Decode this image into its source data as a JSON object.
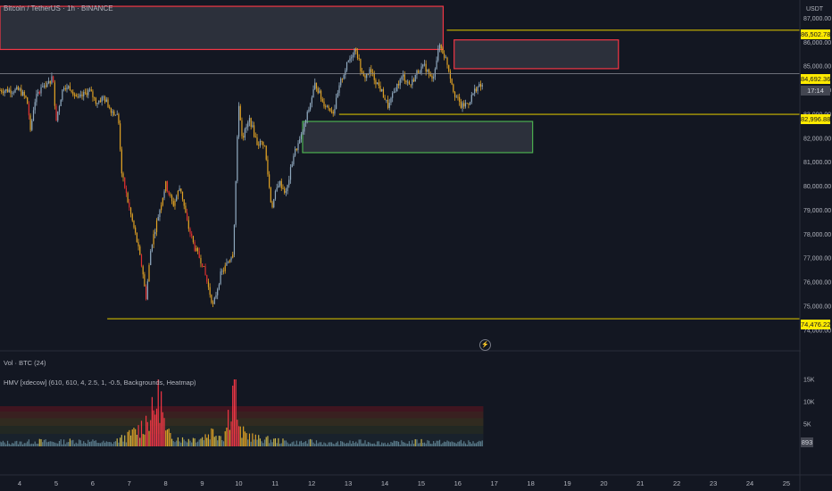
{
  "header": {
    "symbol_title": "Bitcoin / TetherUS · 1h · BINANCE",
    "currency": "USDT"
  },
  "indicators": {
    "volume_label": "Vol · BTC (24)",
    "hmv_label": "HMV [xdecow] (610, 610, 4, 2.5, 1, -0.5, Backgrounds, Heatmap)",
    "volume_axis_ticks": [
      "15K",
      "10K",
      "5K"
    ],
    "volume_last_value": "893"
  },
  "chart_data": {
    "type": "candlestick",
    "price_axis_ticks": [
      "87,000.00",
      "86,000.00",
      "85,000.00",
      "84,000.00",
      "83,000.00",
      "82,000.00",
      "81,000.00",
      "80,000.00",
      "79,000.00",
      "78,000.00",
      "77,000.00",
      "76,000.00",
      "75,000.00",
      "74,000.00"
    ],
    "price_tick_values": [
      87000,
      86000,
      85000,
      84000,
      83000,
      82000,
      81000,
      80000,
      79000,
      78000,
      77000,
      76000,
      75000,
      74000
    ],
    "ylim": [
      73900,
      87500
    ],
    "date_axis_ticks": [
      "4",
      "5",
      "6",
      "7",
      "8",
      "9",
      "10",
      "11",
      "12",
      "13",
      "14",
      "15",
      "16",
      "17",
      "18",
      "19",
      "20",
      "21",
      "22",
      "23",
      "24",
      "25"
    ],
    "price_path": [
      [
        4.0,
        84000
      ],
      [
        4.2,
        83600
      ],
      [
        4.3,
        82300
      ],
      [
        4.4,
        83500
      ],
      [
        4.6,
        84200
      ],
      [
        4.8,
        84300
      ],
      [
        4.9,
        84600
      ],
      [
        5.0,
        82800
      ],
      [
        5.2,
        84200
      ],
      [
        5.4,
        84100
      ],
      [
        5.6,
        83600
      ],
      [
        5.9,
        84000
      ],
      [
        6.1,
        83500
      ],
      [
        6.3,
        83700
      ],
      [
        6.5,
        83200
      ],
      [
        6.7,
        82900
      ],
      [
        6.8,
        80500
      ],
      [
        7.0,
        79100
      ],
      [
        7.2,
        77800
      ],
      [
        7.4,
        76200
      ],
      [
        7.45,
        75200
      ],
      [
        7.6,
        77500
      ],
      [
        7.8,
        78800
      ],
      [
        8.0,
        80100
      ],
      [
        8.2,
        79200
      ],
      [
        8.4,
        80000
      ],
      [
        8.6,
        78400
      ],
      [
        8.8,
        77400
      ],
      [
        9.0,
        76800
      ],
      [
        9.2,
        75600
      ],
      [
        9.3,
        75000
      ],
      [
        9.5,
        76300
      ],
      [
        9.7,
        76800
      ],
      [
        9.85,
        77300
      ],
      [
        10.0,
        83500
      ],
      [
        10.1,
        82000
      ],
      [
        10.3,
        82800
      ],
      [
        10.5,
        81800
      ],
      [
        10.7,
        81800
      ],
      [
        10.9,
        79100
      ],
      [
        11.1,
        80200
      ],
      [
        11.3,
        79700
      ],
      [
        11.5,
        81300
      ],
      [
        11.7,
        82000
      ],
      [
        11.9,
        83100
      ],
      [
        12.1,
        84300
      ],
      [
        12.3,
        83500
      ],
      [
        12.6,
        83100
      ],
      [
        12.8,
        84400
      ],
      [
        13.0,
        85200
      ],
      [
        13.2,
        85800
      ],
      [
        13.4,
        84500
      ],
      [
        13.6,
        84800
      ],
      [
        13.9,
        84000
      ],
      [
        14.1,
        83300
      ],
      [
        14.3,
        84100
      ],
      [
        14.5,
        84600
      ],
      [
        14.7,
        84200
      ],
      [
        14.9,
        84800
      ],
      [
        15.1,
        85000
      ],
      [
        15.3,
        84400
      ],
      [
        15.5,
        85900
      ],
      [
        15.7,
        85200
      ],
      [
        15.9,
        83900
      ],
      [
        16.1,
        83300
      ],
      [
        16.3,
        83500
      ],
      [
        16.5,
        84100
      ],
      [
        16.7,
        84200
      ]
    ],
    "volume_path": [
      [
        4.0,
        900
      ],
      [
        4.5,
        1200
      ],
      [
        5.0,
        1000
      ],
      [
        5.5,
        1300
      ],
      [
        6.0,
        1100
      ],
      [
        6.5,
        800
      ],
      [
        7.0,
        2500
      ],
      [
        7.3,
        4200
      ],
      [
        7.45,
        6000
      ],
      [
        7.7,
        8000
      ],
      [
        7.8,
        15000
      ],
      [
        8.0,
        3000
      ],
      [
        8.5,
        1500
      ],
      [
        9.0,
        2000
      ],
      [
        9.3,
        3600
      ],
      [
        9.6,
        2200
      ],
      [
        9.9,
        15000
      ],
      [
        10.0,
        3500
      ],
      [
        10.5,
        1800
      ],
      [
        11.0,
        1400
      ],
      [
        11.5,
        900
      ],
      [
        12.0,
        1100
      ],
      [
        12.5,
        700
      ],
      [
        13.0,
        900
      ],
      [
        13.5,
        1100
      ],
      [
        14.0,
        800
      ],
      [
        14.5,
        900
      ],
      [
        15.0,
        1200
      ],
      [
        15.5,
        1000
      ],
      [
        16.0,
        1000
      ],
      [
        16.5,
        893
      ]
    ],
    "horizontal_levels": [
      {
        "label": "86,502.78",
        "value": 86502.78,
        "x_start": 15.7
      },
      {
        "label": "84,692.36",
        "value": 84692.36,
        "x_start": 4.0
      },
      {
        "label": "82,996.88",
        "value": 82996.88,
        "x_start": 12.75
      },
      {
        "label": "74,476.22",
        "value": 74476.22,
        "x_start": 6.4
      }
    ],
    "last_price_tag": "84,692.36",
    "countdown": "17:14",
    "zones": [
      {
        "name": "upper-red-zone",
        "x": [
          4.0,
          15.6
        ],
        "y": [
          85700,
          87500
        ],
        "color": "#f23645"
      },
      {
        "name": "resistance-zone",
        "x": [
          15.9,
          20.4
        ],
        "y": [
          84900,
          86100
        ],
        "color": "#f23645"
      },
      {
        "name": "support-zone",
        "x": [
          11.75,
          18.05
        ],
        "y": [
          81400,
          82700
        ],
        "color": "#4caf50"
      }
    ],
    "colors": {
      "background": "#131722",
      "level_line": "#cdb800",
      "label_bg": "#ffea00",
      "bull_candle": "#8fa9bf",
      "bear_candle": "#e0a224",
      "heat_candle": "#e03030",
      "countdown_bg": "#434651"
    }
  }
}
